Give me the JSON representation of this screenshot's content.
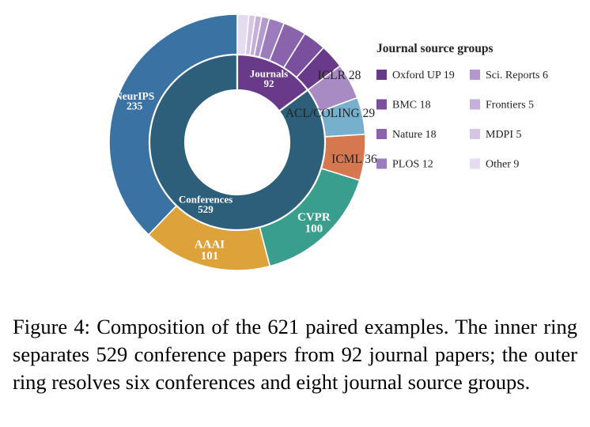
{
  "chart_data": {
    "type": "pie",
    "subtype": "nested-donut",
    "total": 621,
    "inner_ring": [
      {
        "label": "Conferences",
        "value": 529,
        "color": "#2e5f7a"
      },
      {
        "label": "Journals",
        "value": 92,
        "color": "#6a3a8a"
      }
    ],
    "outer_ring": [
      {
        "label": "NeurIPS",
        "value": 235,
        "color": "#3a72a3",
        "group": "Conferences"
      },
      {
        "label": "AAAI",
        "value": 101,
        "color": "#dda33a",
        "group": "Conferences"
      },
      {
        "label": "CVPR",
        "value": 100,
        "color": "#3a9e8e",
        "group": "Conferences"
      },
      {
        "label": "ICML",
        "value": 36,
        "color": "#d5774f",
        "group": "Conferences"
      },
      {
        "label": "ACL/COLING",
        "value": 29,
        "color": "#76b0cc",
        "group": "Conferences"
      },
      {
        "label": "ICLR",
        "value": 28,
        "color": "#a98bc4",
        "group": "Conferences"
      },
      {
        "label": "Oxford UP",
        "value": 19,
        "color": "#6a3a8a",
        "group": "Journals"
      },
      {
        "label": "BMC",
        "value": 18,
        "color": "#7a4f9e",
        "group": "Journals"
      },
      {
        "label": "Nature",
        "value": 18,
        "color": "#8b63ad",
        "group": "Journals"
      },
      {
        "label": "PLOS",
        "value": 12,
        "color": "#9c7cbd",
        "group": "Journals"
      },
      {
        "label": "Sci. Reports",
        "value": 6,
        "color": "#b499ce",
        "group": "Journals"
      },
      {
        "label": "Frontiers",
        "value": 5,
        "color": "#c6b0da",
        "group": "Journals"
      },
      {
        "label": "MDPI",
        "value": 5,
        "color": "#d6c6e6",
        "group": "Journals"
      },
      {
        "label": "Other",
        "value": 9,
        "color": "#e6dcf0",
        "group": "Journals"
      }
    ],
    "legend": {
      "title": "Journal source groups",
      "position": "right",
      "columns": [
        [
          "Oxford UP",
          "BMC",
          "Nature",
          "PLOS"
        ],
        [
          "Sci. Reports",
          "Frontiers",
          "MDPI",
          "Other"
        ]
      ]
    }
  },
  "caption": "Figure 4: Composition of the 621 paired examples. The inner ring separates 529 conference papers from 92 journal papers; the outer ring resolves six conferences and eight journal source groups."
}
